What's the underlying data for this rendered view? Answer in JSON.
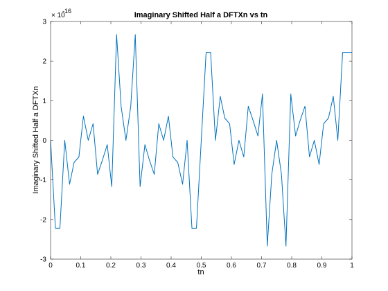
{
  "chart_data": {
    "type": "line",
    "title": "Imaginary Shifted Half a DFTXn vs tn",
    "xlabel": "tn",
    "ylabel": "Imaginary Shifted Half a DFTXn",
    "y_exponent_base": "× 10",
    "y_exponent_power": "-16",
    "xlim": [
      0,
      1
    ],
    "ylim": [
      -3,
      3
    ],
    "x_ticks": [
      "0",
      "0.1",
      "0.2",
      "0.3",
      "0.4",
      "0.5",
      "0.6",
      "0.7",
      "0.8",
      "0.9",
      "1"
    ],
    "y_ticks": [
      "-3",
      "-2",
      "-1",
      "0",
      "1",
      "2",
      "3"
    ],
    "grid": false,
    "line_color": "#0072BD",
    "series": [
      {
        "x": [
          0,
          0.016,
          0.031,
          0.047,
          0.063,
          0.078,
          0.094,
          0.109,
          0.125,
          0.141,
          0.156,
          0.172,
          0.188,
          0.203,
          0.219,
          0.234,
          0.25,
          0.266,
          0.281,
          0.297,
          0.313,
          0.328,
          0.344,
          0.359,
          0.375,
          0.391,
          0.406,
          0.422,
          0.438,
          0.453,
          0.469,
          0.484,
          0.5,
          0.516,
          0.531,
          0.547,
          0.563,
          0.578,
          0.594,
          0.609,
          0.625,
          0.641,
          0.656,
          0.672,
          0.688,
          0.703,
          0.719,
          0.734,
          0.75,
          0.766,
          0.781,
          0.797,
          0.813,
          0.828,
          0.844,
          0.859,
          0.875,
          0.891,
          0.906,
          0.922,
          0.938,
          0.953,
          0.969,
          0.984,
          1.0
        ],
        "y": [
          0,
          -2.22,
          -2.22,
          0,
          -1.11,
          -0.56,
          -0.42,
          0.61,
          0,
          0.42,
          -0.86,
          -0.5,
          -0.11,
          -1.17,
          2.67,
          0.86,
          0,
          0.86,
          2.67,
          -1.17,
          -0.11,
          -0.5,
          -0.86,
          0.42,
          0,
          0.61,
          -0.42,
          -0.56,
          -1.11,
          0,
          -2.22,
          -2.22,
          0,
          2.22,
          2.22,
          0,
          1.11,
          0.56,
          0.42,
          -0.61,
          0,
          -0.42,
          0.86,
          0.5,
          0.11,
          1.17,
          -2.67,
          -0.86,
          0,
          -0.86,
          -2.67,
          1.17,
          0.11,
          0.5,
          0.86,
          -0.42,
          0,
          -0.61,
          0.42,
          0.56,
          1.11,
          0,
          2.22,
          2.22,
          2.22
        ]
      }
    ]
  }
}
